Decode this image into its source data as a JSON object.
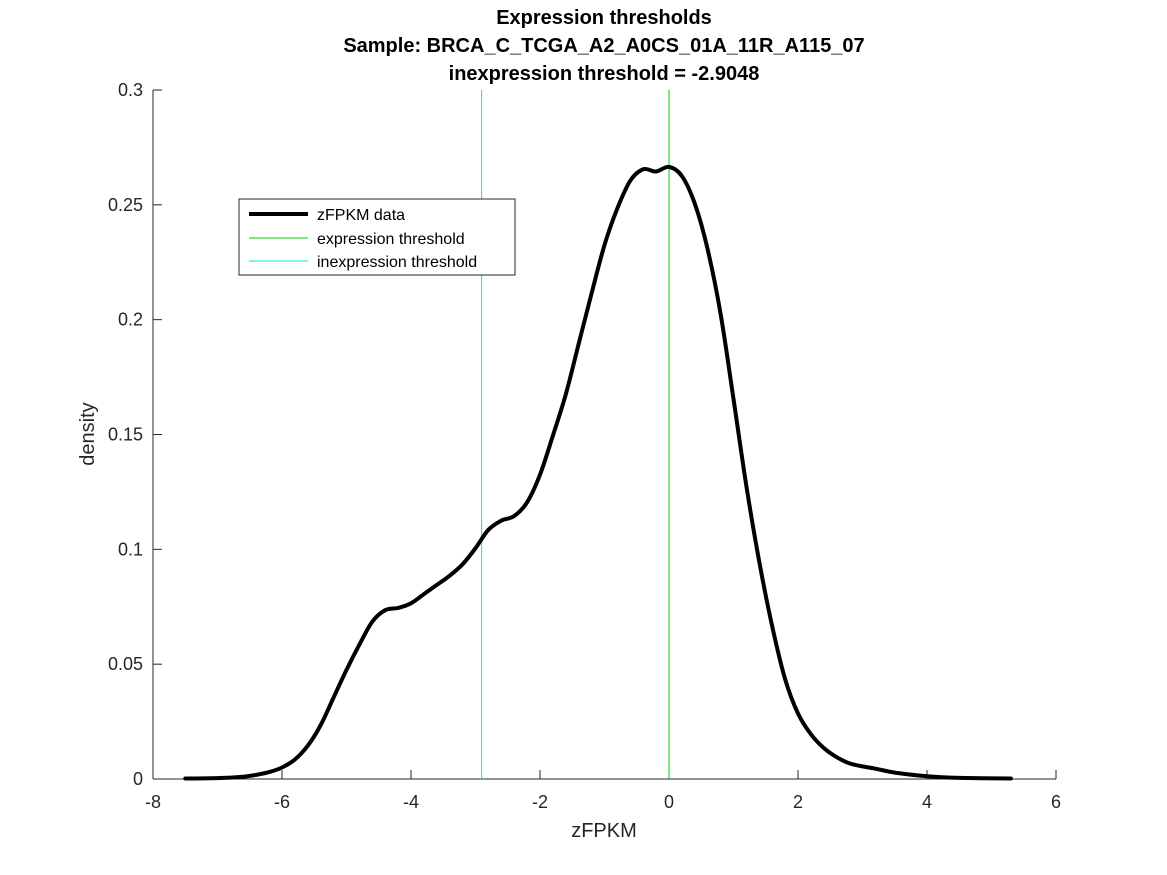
{
  "chart_data": {
    "type": "line",
    "title": [
      "Expression thresholds",
      "Sample: BRCA_C_TCGA_A2_A0CS_01A_11R_A115_07",
      "inexpression threshold = -2.9048"
    ],
    "xlabel": "zFPKM",
    "ylabel": "density",
    "xlim": [
      -8,
      6
    ],
    "ylim": [
      0,
      0.3
    ],
    "xticks": [
      -8,
      -6,
      -4,
      -2,
      0,
      2,
      4,
      6
    ],
    "xtick_labels": [
      "-8",
      "-6",
      "-4",
      "-2",
      "0",
      "2",
      "4",
      "6"
    ],
    "yticks": [
      0,
      0.05,
      0.1,
      0.15,
      0.2,
      0.25,
      0.3
    ],
    "ytick_labels": [
      "0",
      "0.05",
      "0.1",
      "0.15",
      "0.2",
      "0.25",
      "0.3"
    ],
    "grid": false,
    "legend_position": "top-left",
    "series": [
      {
        "name": "zFPKM data",
        "color": "#000000",
        "x": [
          -7.5,
          -7.0,
          -6.6,
          -6.4,
          -6.2,
          -6.0,
          -5.8,
          -5.6,
          -5.4,
          -5.2,
          -5.0,
          -4.8,
          -4.6,
          -4.4,
          -4.2,
          -4.0,
          -3.8,
          -3.6,
          -3.4,
          -3.2,
          -3.0,
          -2.8,
          -2.6,
          -2.4,
          -2.2,
          -2.0,
          -1.8,
          -1.6,
          -1.4,
          -1.2,
          -1.0,
          -0.8,
          -0.6,
          -0.4,
          -0.2,
          0.0,
          0.2,
          0.4,
          0.6,
          0.8,
          1.0,
          1.2,
          1.4,
          1.6,
          1.8,
          2.0,
          2.2,
          2.4,
          2.6,
          2.8,
          3.0,
          3.2,
          3.5,
          4.0,
          4.5,
          5.3
        ],
        "y": [
          0.0002,
          0.0004,
          0.001,
          0.0018,
          0.003,
          0.005,
          0.0085,
          0.0145,
          0.0235,
          0.0355,
          0.0475,
          0.0585,
          0.0685,
          0.0735,
          0.0745,
          0.0765,
          0.0805,
          0.0845,
          0.0885,
          0.0935,
          0.1005,
          0.1085,
          0.1125,
          0.1145,
          0.1205,
          0.1325,
          0.1495,
          0.1675,
          0.1895,
          0.2115,
          0.2325,
          0.2485,
          0.2605,
          0.2655,
          0.2645,
          0.2665,
          0.2625,
          0.2505,
          0.2305,
          0.2025,
          0.1655,
          0.1275,
          0.0945,
          0.0665,
          0.0435,
          0.0285,
          0.0195,
          0.0135,
          0.0095,
          0.0068,
          0.0055,
          0.0045,
          0.0028,
          0.0012,
          0.0005,
          0.0002
        ]
      },
      {
        "name": "expression threshold",
        "color": "#00cc00",
        "x_value": 0.0
      },
      {
        "name": "inexpression threshold",
        "color": "#00e5e5",
        "x_value": -2.9048
      }
    ]
  }
}
